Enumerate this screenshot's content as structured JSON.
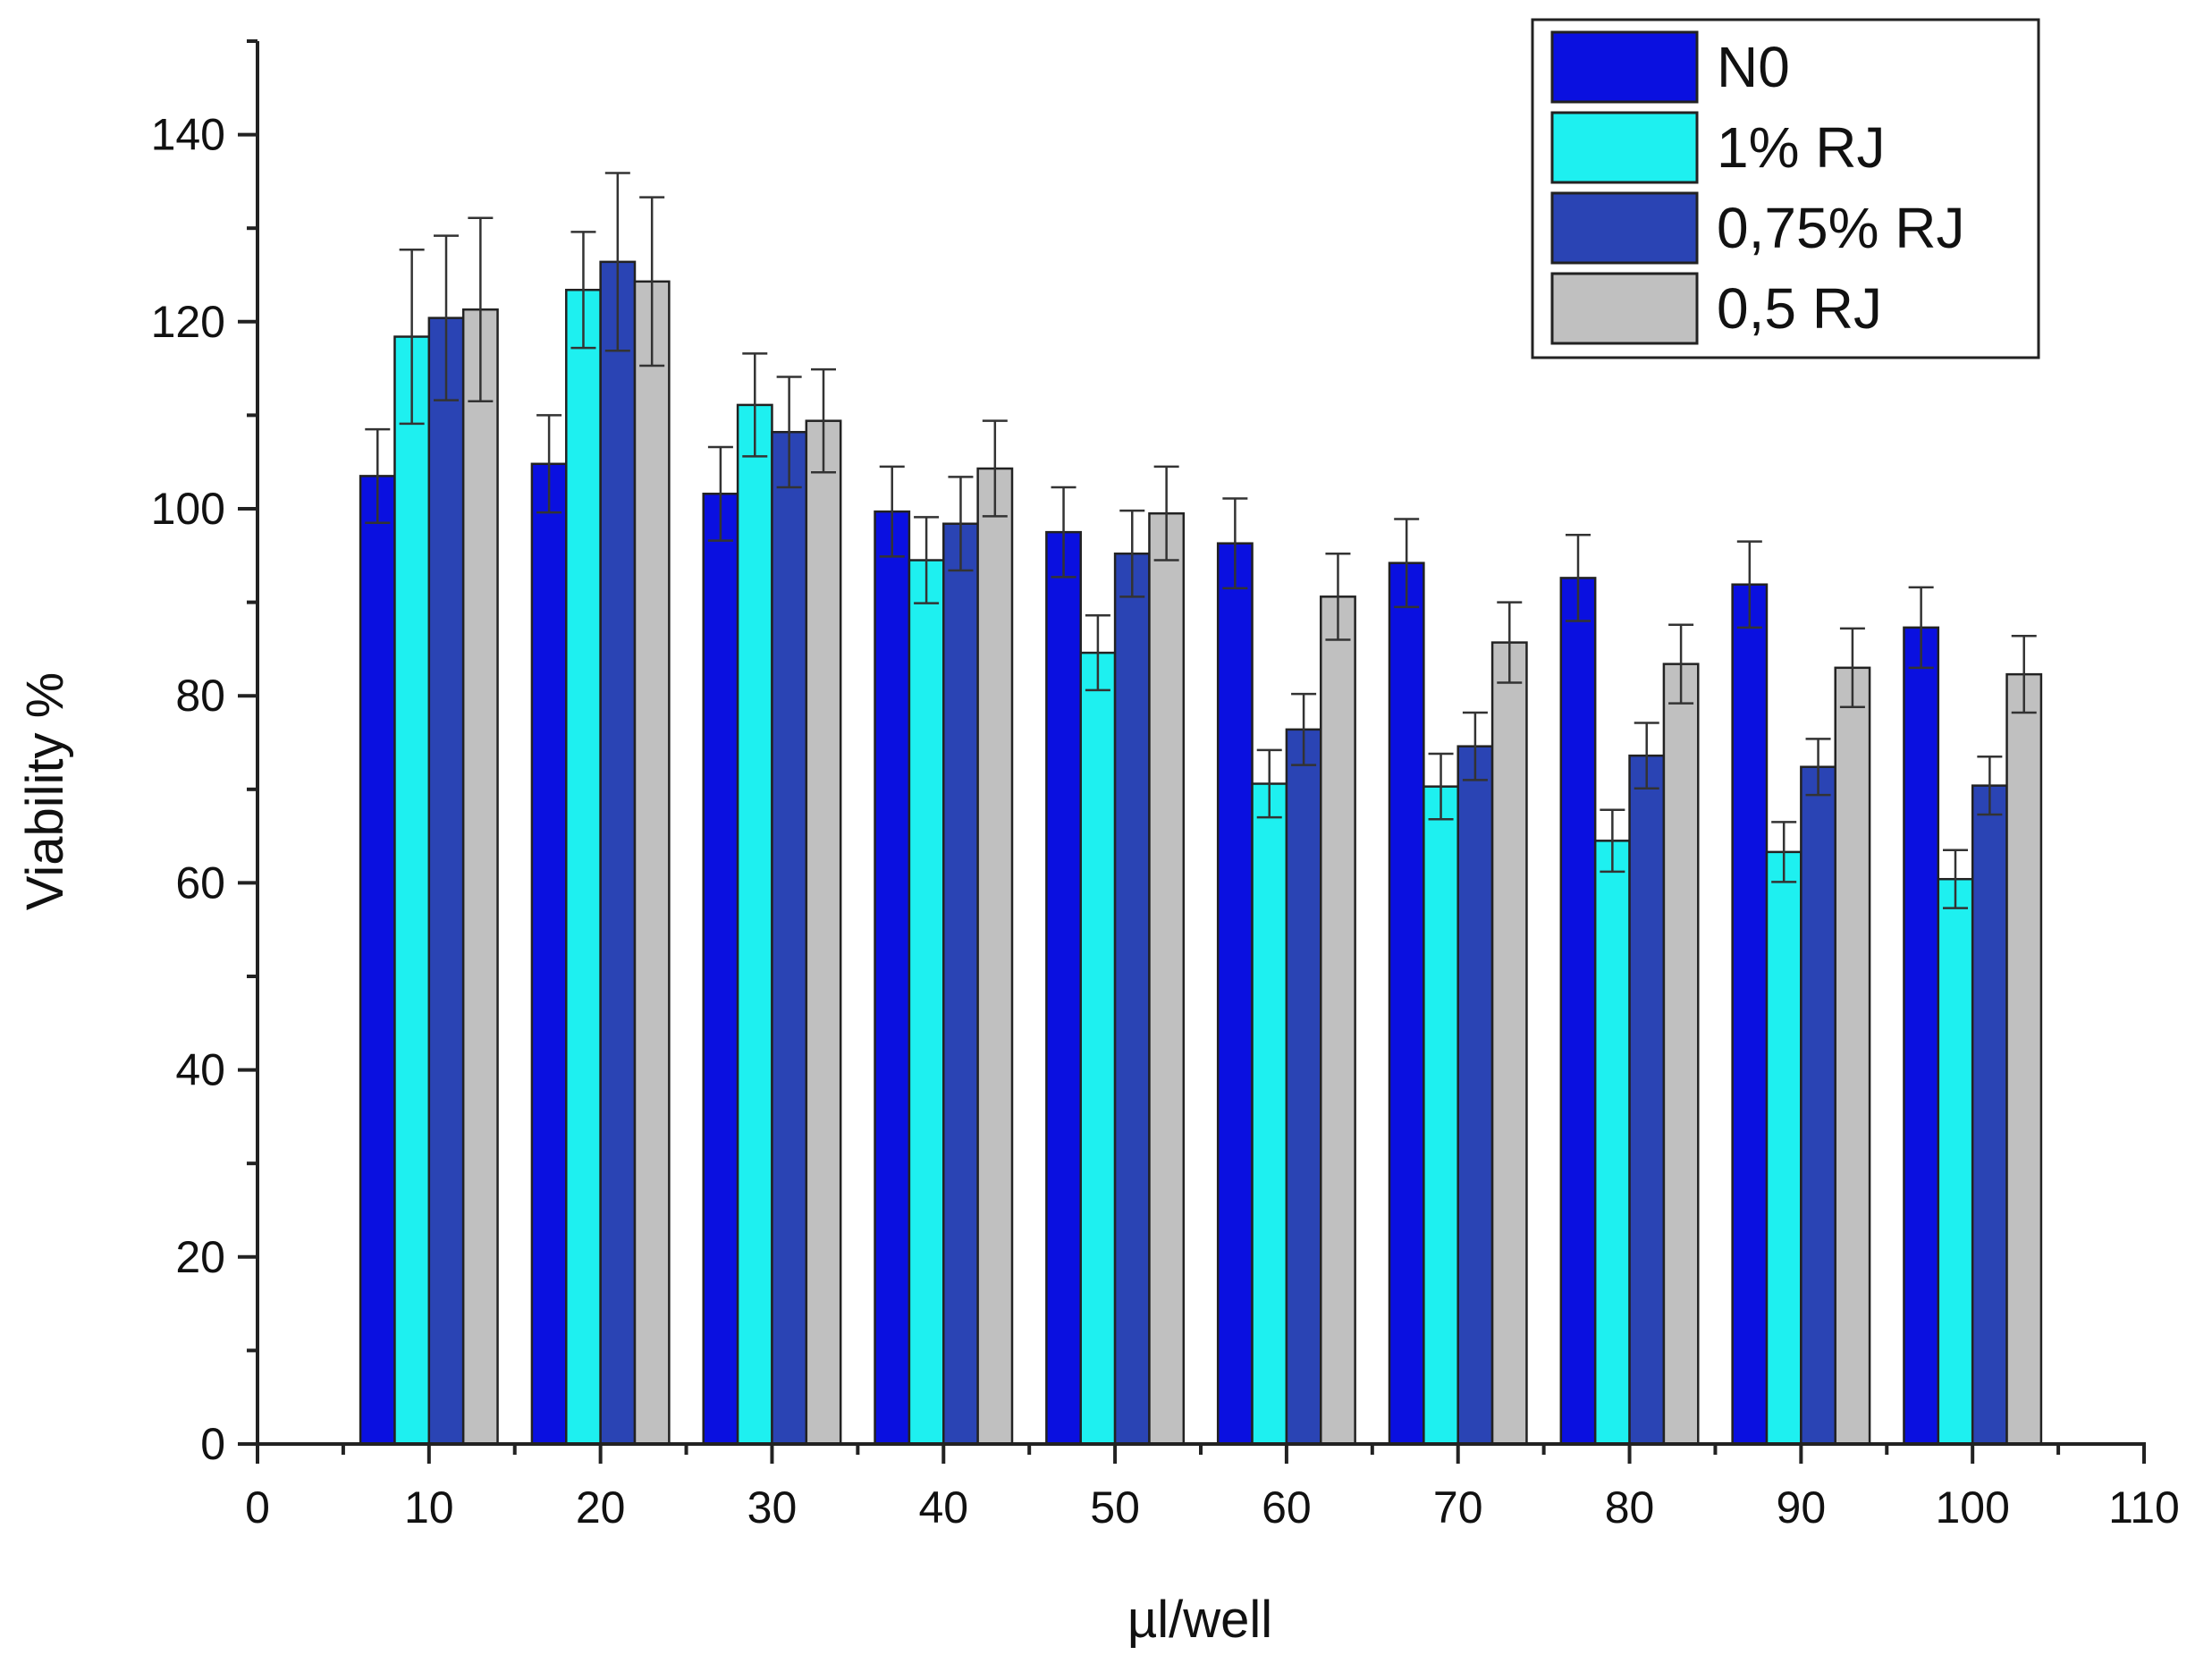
{
  "chart_data": {
    "type": "bar",
    "title": "",
    "xlabel": "µl/well",
    "ylabel": "Viability %",
    "xlim": [
      0,
      110
    ],
    "ylim": [
      0,
      150
    ],
    "x_ticks": [
      0,
      10,
      20,
      30,
      40,
      50,
      60,
      70,
      80,
      90,
      100,
      110
    ],
    "y_ticks": [
      0,
      20,
      40,
      60,
      80,
      100,
      120,
      140
    ],
    "x_tick_labels": [
      "0",
      "10",
      "20",
      "30",
      "40",
      "50",
      "60",
      "70",
      "80",
      "90",
      "100",
      "110"
    ],
    "y_tick_labels": [
      "0",
      "20",
      "40",
      "60",
      "80",
      "100",
      "120",
      "140"
    ],
    "categories": [
      10,
      20,
      30,
      40,
      50,
      60,
      70,
      80,
      90,
      100
    ],
    "legend_position": "top-right",
    "grid": false,
    "series": [
      {
        "name": "N0",
        "color": "#0a10e0",
        "values": [
          103.5,
          104.8,
          101.6,
          99.7,
          97.5,
          96.3,
          94.2,
          92.6,
          91.9,
          87.3
        ],
        "errors": [
          5.0,
          5.2,
          5.0,
          4.8,
          4.8,
          4.8,
          4.7,
          4.6,
          4.6,
          4.3
        ]
      },
      {
        "name": "1% RJ",
        "color": "#1ef0f0",
        "values": [
          118.4,
          123.4,
          111.1,
          94.5,
          84.6,
          70.6,
          70.3,
          64.5,
          63.3,
          60.4
        ],
        "errors": [
          9.3,
          6.2,
          5.5,
          4.6,
          4.0,
          3.6,
          3.5,
          3.3,
          3.2,
          3.1
        ]
      },
      {
        "name": "0,75% RJ",
        "color": "#2a44b4",
        "values": [
          120.4,
          126.4,
          108.2,
          98.4,
          95.2,
          76.4,
          74.6,
          73.6,
          72.4,
          70.4
        ],
        "errors": [
          8.8,
          9.5,
          5.9,
          5.0,
          4.6,
          3.8,
          3.6,
          3.5,
          3.0,
          3.1
        ]
      },
      {
        "name": "0,5 RJ",
        "color": "#c0c0c0",
        "values": [
          121.3,
          124.3,
          109.4,
          104.3,
          99.5,
          90.6,
          85.7,
          83.4,
          83.0,
          82.3
        ],
        "errors": [
          9.8,
          9.0,
          5.5,
          5.1,
          5.0,
          4.6,
          4.3,
          4.2,
          4.2,
          4.1
        ]
      }
    ]
  }
}
